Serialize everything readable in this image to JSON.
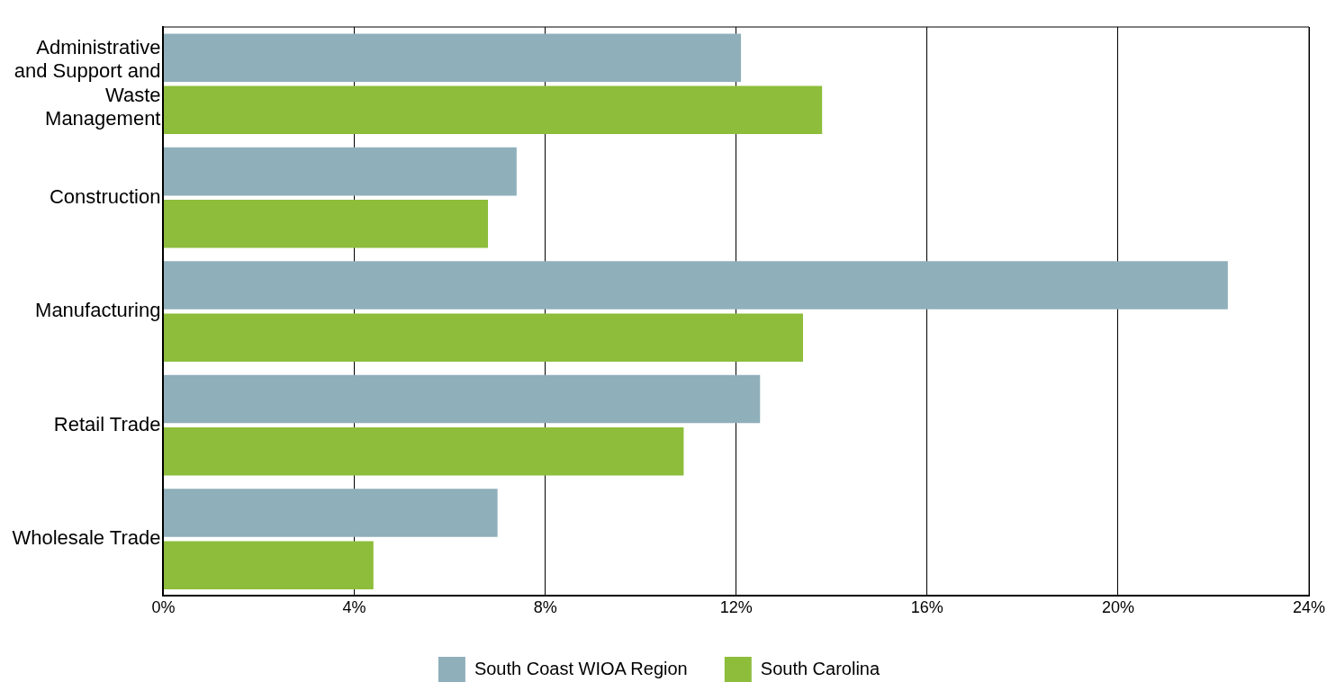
{
  "chart_data": {
    "type": "bar",
    "orientation": "horizontal",
    "categories": [
      "Administrative and Support and Waste Management",
      "Construction",
      "Manufacturing",
      "Retail Trade",
      "Wholesale Trade"
    ],
    "series": [
      {
        "name": "South Coast WIOA Region",
        "color": "#8fafba",
        "values": [
          12.1,
          7.4,
          22.3,
          12.5,
          7.0
        ]
      },
      {
        "name": "South Carolina",
        "color": "#8dbd3b",
        "values": [
          13.8,
          6.8,
          13.4,
          10.9,
          4.4
        ]
      }
    ],
    "xlim": [
      0,
      24
    ],
    "xticks": [
      {
        "value": 0,
        "label": "0%"
      },
      {
        "value": 4,
        "label": "4%"
      },
      {
        "value": 8,
        "label": "8%"
      },
      {
        "value": 12,
        "label": "12%"
      },
      {
        "value": 16,
        "label": "16%"
      },
      {
        "value": 20,
        "label": "20%"
      },
      {
        "value": 24,
        "label": "24%"
      }
    ],
    "grid": "x",
    "legend": "bottom"
  }
}
